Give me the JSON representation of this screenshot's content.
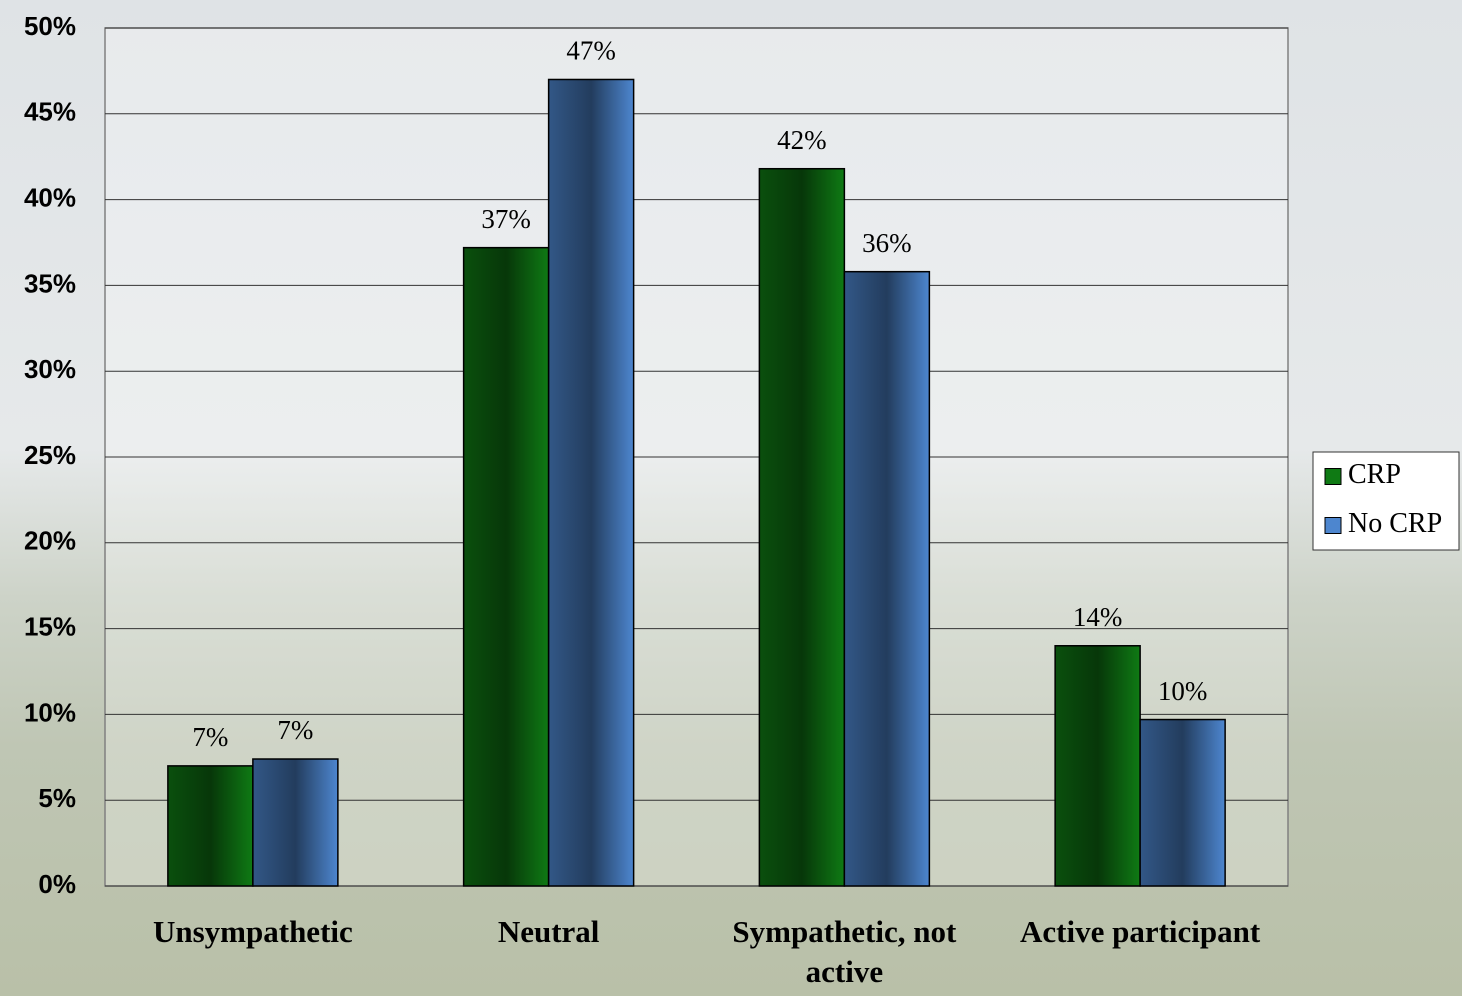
{
  "chart_data": {
    "type": "bar",
    "categories": [
      "Unsympathetic",
      "Neutral",
      "Sympathetic, not active",
      "Active participant"
    ],
    "series": [
      {
        "name": "CRP",
        "color": "#0f7a14",
        "values": [
          7.0,
          37.2,
          41.8,
          14.0
        ],
        "value_labels": [
          "7%",
          "37%",
          "42%",
          "14%"
        ]
      },
      {
        "name": "No CRP",
        "color": "#4d86cf",
        "values": [
          7.4,
          47.0,
          35.8,
          9.7
        ],
        "value_labels": [
          "7%",
          "47%",
          "36%",
          "10%"
        ]
      }
    ],
    "ylim": [
      0,
      50
    ],
    "yticks": [
      {
        "value": 0,
        "label": "0%"
      },
      {
        "value": 5,
        "label": "5%"
      },
      {
        "value": 10,
        "label": "10%"
      },
      {
        "value": 15,
        "label": "15%"
      },
      {
        "value": 20,
        "label": "20%"
      },
      {
        "value": 25,
        "label": "25%"
      },
      {
        "value": 30,
        "label": "30%"
      },
      {
        "value": 35,
        "label": "35%"
      },
      {
        "value": 40,
        "label": "40%"
      },
      {
        "value": 45,
        "label": "45%"
      },
      {
        "value": 50,
        "label": "50%"
      }
    ],
    "grid": true,
    "legend": "right"
  }
}
